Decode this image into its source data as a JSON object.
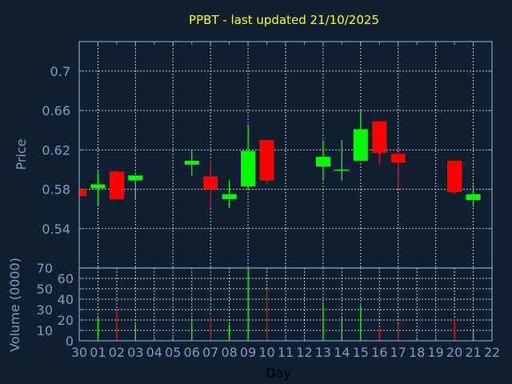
{
  "chart_data": [
    {
      "type": "candlestick",
      "title": "PPBT - last updated 21/10/2025",
      "ylabel": "Price",
      "ylim": [
        0.5,
        0.73
      ],
      "yticks": [
        "0.54",
        "0.58",
        "0.62",
        "0.66",
        "0.7"
      ],
      "ytick_values": [
        0.54,
        0.58,
        0.62,
        0.66,
        0.7
      ],
      "grid": true,
      "x_ticks": [
        "30",
        "01",
        "02",
        "03",
        "04",
        "05",
        "06",
        "07",
        "08",
        "09",
        "10",
        "11",
        "12",
        "13",
        "14",
        "15",
        "16",
        "17",
        "18",
        "19",
        "20",
        "21",
        "22"
      ],
      "candles": [
        {
          "day": "30",
          "open": 0.58,
          "high": 0.58,
          "low": 0.573,
          "close": 0.573
        },
        {
          "day": "01",
          "open": 0.581,
          "high": 0.598,
          "low": 0.564,
          "close": 0.585
        },
        {
          "day": "02",
          "open": 0.598,
          "high": 0.599,
          "low": 0.57,
          "close": 0.57
        },
        {
          "day": "03",
          "open": 0.589,
          "high": 0.594,
          "low": 0.57,
          "close": 0.594
        },
        {
          "day": "06",
          "open": 0.605,
          "high": 0.62,
          "low": 0.594,
          "close": 0.609
        },
        {
          "day": "07",
          "open": 0.593,
          "high": 0.61,
          "low": 0.56,
          "close": 0.58
        },
        {
          "day": "08",
          "open": 0.57,
          "high": 0.589,
          "low": 0.561,
          "close": 0.575
        },
        {
          "day": "09",
          "open": 0.583,
          "high": 0.646,
          "low": 0.579,
          "close": 0.619
        },
        {
          "day": "10",
          "open": 0.63,
          "high": 0.63,
          "low": 0.586,
          "close": 0.589
        },
        {
          "day": "13",
          "open": 0.603,
          "high": 0.63,
          "low": 0.589,
          "close": 0.613
        },
        {
          "day": "14",
          "open": 0.599,
          "high": 0.63,
          "low": 0.589,
          "close": 0.6
        },
        {
          "day": "15",
          "open": 0.609,
          "high": 0.66,
          "low": 0.609,
          "close": 0.641
        },
        {
          "day": "16",
          "open": 0.649,
          "high": 0.649,
          "low": 0.605,
          "close": 0.617
        },
        {
          "day": "17",
          "open": 0.616,
          "high": 0.616,
          "low": 0.581,
          "close": 0.607
        },
        {
          "day": "20",
          "open": 0.609,
          "high": 0.609,
          "low": 0.575,
          "close": 0.577
        },
        {
          "day": "21",
          "open": 0.569,
          "high": 0.585,
          "low": 0.562,
          "close": 0.575
        }
      ]
    },
    {
      "type": "bar",
      "ylabel": "Volume (0000)",
      "xlabel": "Day",
      "ylim": [
        0,
        70
      ],
      "yticks": [
        "0",
        "10",
        "20",
        "30",
        "40",
        "50",
        "60",
        "70"
      ],
      "ytick_values": [
        0,
        10,
        20,
        30,
        40,
        50,
        60,
        70
      ],
      "grid": true,
      "bars": [
        {
          "day": "01",
          "value": 23,
          "direction": "up"
        },
        {
          "day": "02",
          "value": 29,
          "direction": "down"
        },
        {
          "day": "03",
          "value": 16,
          "direction": "up"
        },
        {
          "day": "06",
          "value": 21.5,
          "direction": "up"
        },
        {
          "day": "07",
          "value": 24,
          "direction": "down"
        },
        {
          "day": "08",
          "value": 16,
          "direction": "up"
        },
        {
          "day": "09",
          "value": 69,
          "direction": "up"
        },
        {
          "day": "10",
          "value": 50,
          "direction": "down"
        },
        {
          "day": "13",
          "value": 37,
          "direction": "up"
        },
        {
          "day": "14",
          "value": 22,
          "direction": "up"
        },
        {
          "day": "15",
          "value": 34,
          "direction": "up"
        },
        {
          "day": "16",
          "value": 12,
          "direction": "down"
        },
        {
          "day": "17",
          "value": 16,
          "direction": "down"
        },
        {
          "day": "20",
          "value": 21,
          "direction": "down"
        },
        {
          "day": "21",
          "value": 10.5,
          "direction": "up"
        }
      ]
    }
  ],
  "colors": {
    "up": "#00ff00",
    "down": "#ff0000",
    "title": "#ffff00",
    "axis": "#7ea0c8",
    "grid": "#c8c8c8",
    "background": "#0f1f2f"
  }
}
